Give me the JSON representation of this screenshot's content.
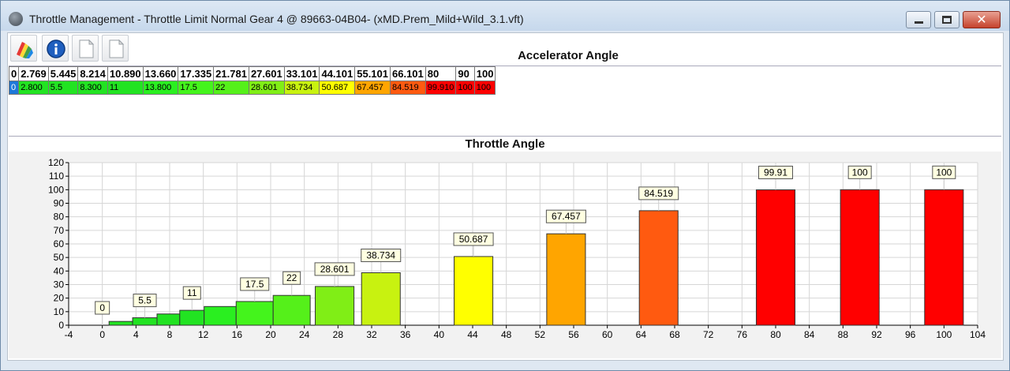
{
  "window": {
    "title": "Throttle Management - Throttle Limit Normal Gear 4 @ 89663-04B04- (xMD.Prem_Mild+Wild_3.1.vft)",
    "close_glyph": "✕"
  },
  "toolbar": [
    {
      "icon": "palette-icon",
      "name": "color-scheme-button"
    },
    {
      "icon": "info-icon",
      "name": "info-button"
    },
    {
      "icon": "document-icon",
      "name": "document-button-1"
    },
    {
      "icon": "document-icon",
      "name": "document-button-2"
    }
  ],
  "table": {
    "title": "Accelerator Angle",
    "headers": [
      "0",
      "2.769",
      "5.445",
      "8.214",
      "10.890",
      "13.660",
      "17.335",
      "21.781",
      "27.601",
      "33.101",
      "44.101",
      "55.101",
      "66.101",
      "80",
      "90",
      "100"
    ],
    "row": [
      {
        "v": "0",
        "bg": "#1e78d8",
        "fg": "#ffffff"
      },
      {
        "v": "2.800",
        "bg": "#22e322",
        "fg": "#000000"
      },
      {
        "v": "5.5",
        "bg": "#22e322",
        "fg": "#000000"
      },
      {
        "v": "8.300",
        "bg": "#22e322",
        "fg": "#000000"
      },
      {
        "v": "11",
        "bg": "#22e322",
        "fg": "#000000"
      },
      {
        "v": "13.800",
        "bg": "#2aef20",
        "fg": "#000000"
      },
      {
        "v": "17.5",
        "bg": "#44f41c",
        "fg": "#000000"
      },
      {
        "v": "22",
        "bg": "#55f01a",
        "fg": "#000000"
      },
      {
        "v": "28.601",
        "bg": "#80ee16",
        "fg": "#000000"
      },
      {
        "v": "38.734",
        "bg": "#c8f210",
        "fg": "#000000"
      },
      {
        "v": "50.687",
        "bg": "#ffff00",
        "fg": "#000000"
      },
      {
        "v": "67.457",
        "bg": "#ffa500",
        "fg": "#000000"
      },
      {
        "v": "84.519",
        "bg": "#ff5a10",
        "fg": "#000000"
      },
      {
        "v": "99.910",
        "bg": "#ff0000",
        "fg": "#000000"
      },
      {
        "v": "100",
        "bg": "#ff0000",
        "fg": "#000000"
      },
      {
        "v": "100",
        "bg": "#ff0000",
        "fg": "#000000"
      }
    ]
  },
  "chart_data": {
    "type": "bar",
    "title": "Throttle Angle",
    "xlim": [
      -4,
      104
    ],
    "ylim": [
      0,
      120
    ],
    "xticks": [
      -4,
      0,
      4,
      8,
      12,
      16,
      20,
      24,
      28,
      32,
      36,
      40,
      44,
      48,
      52,
      56,
      60,
      64,
      68,
      72,
      76,
      80,
      84,
      88,
      92,
      96,
      100,
      104
    ],
    "yticks": [
      0,
      10,
      20,
      30,
      40,
      50,
      60,
      70,
      80,
      90,
      100,
      110,
      120
    ],
    "grid": true,
    "bars": [
      {
        "x": 0,
        "x0": 0,
        "x1": 0,
        "value": 0,
        "label": "0",
        "color": "#1e78d8"
      },
      {
        "x": 2.769,
        "x0": 0.8,
        "x1": 3.6,
        "value": 2.8,
        "label": "",
        "color": "#22e322"
      },
      {
        "x": 5.445,
        "x0": 3.6,
        "x1": 6.5,
        "value": 5.5,
        "label": "5.5",
        "color": "#22e322"
      },
      {
        "x": 8.214,
        "x0": 6.5,
        "x1": 9.2,
        "value": 8.3,
        "label": "",
        "color": "#22e322"
      },
      {
        "x": 10.89,
        "x0": 9.2,
        "x1": 12.1,
        "value": 11,
        "label": "11",
        "color": "#22e322"
      },
      {
        "x": 13.66,
        "x0": 12.1,
        "x1": 15.9,
        "value": 13.8,
        "label": "",
        "color": "#2aef20"
      },
      {
        "x": 17.335,
        "x0": 15.9,
        "x1": 20.3,
        "value": 17.5,
        "label": "17.5",
        "color": "#44f41c"
      },
      {
        "x": 21.781,
        "x0": 20.3,
        "x1": 24.7,
        "value": 22,
        "label": "22",
        "color": "#55f01a"
      },
      {
        "x": 27.601,
        "x0": 25.3,
        "x1": 29.9,
        "value": 28.601,
        "label": "28.601",
        "color": "#80ee16"
      },
      {
        "x": 33.101,
        "x0": 30.8,
        "x1": 35.4,
        "value": 38.734,
        "label": "38.734",
        "color": "#c8f210"
      },
      {
        "x": 44.101,
        "x0": 41.8,
        "x1": 46.4,
        "value": 50.687,
        "label": "50.687",
        "color": "#ffff00"
      },
      {
        "x": 55.101,
        "x0": 52.8,
        "x1": 57.4,
        "value": 67.457,
        "label": "67.457",
        "color": "#ffa500"
      },
      {
        "x": 66.101,
        "x0": 63.8,
        "x1": 68.4,
        "value": 84.519,
        "label": "84.519",
        "color": "#ff5a10"
      },
      {
        "x": 80,
        "x0": 77.7,
        "x1": 82.3,
        "value": 99.91,
        "label": "99.91",
        "color": "#ff0000"
      },
      {
        "x": 90,
        "x0": 87.7,
        "x1": 92.3,
        "value": 100,
        "label": "100",
        "color": "#ff0000"
      },
      {
        "x": 100,
        "x0": 97.7,
        "x1": 102.3,
        "value": 100,
        "label": "100",
        "color": "#ff0000"
      }
    ]
  }
}
